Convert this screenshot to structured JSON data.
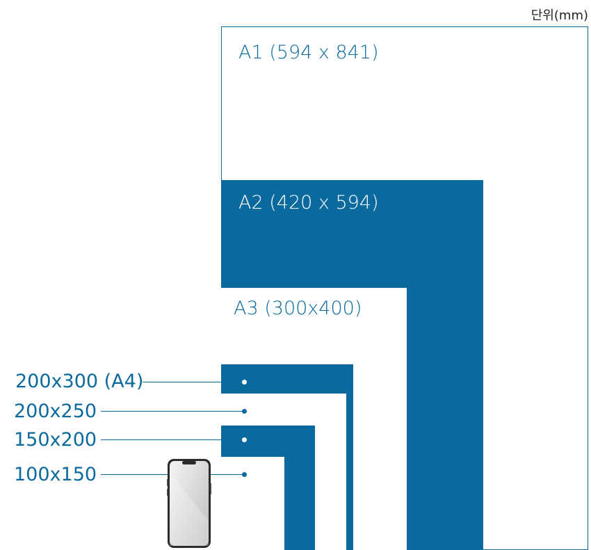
{
  "unit_label": "단위(mm)",
  "sheets": {
    "a1": "A1 (594 x 841)",
    "a2": "A2 (420 x 594)",
    "a3": "A3 (300x400)"
  },
  "callouts": {
    "a4": "200x300 (A4)",
    "s200x250": "200x250",
    "s150x200": "150x200",
    "s100x150": "100x150"
  },
  "colors": {
    "primary": "#0a6a9e",
    "background": "#ffffff"
  },
  "icons": {
    "phone": "smartphone-icon"
  }
}
